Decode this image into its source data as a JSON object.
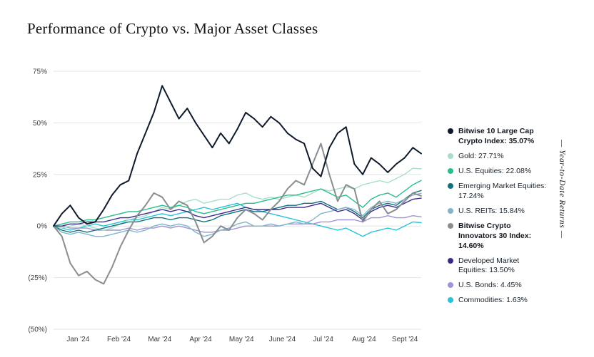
{
  "title": "Performance of Crypto vs. Major Asset Classes",
  "ytd_label": "— Year-to-Date Returns —",
  "chart_data": {
    "type": "line",
    "title": "Performance of Crypto vs. Major Asset Classes",
    "grid": "horizontal",
    "legend_position": "right",
    "x_axis": {
      "labels": [
        "Jan '24",
        "Feb '24",
        "Mar '24",
        "Apr '24",
        "May '24",
        "June '24",
        "Jul '24",
        "Aug '24",
        "Sept '24"
      ]
    },
    "y_axis": {
      "range": [
        -50,
        75
      ],
      "ticks": [
        {
          "value": 75,
          "label": "75%"
        },
        {
          "value": 50,
          "label": "50%"
        },
        {
          "value": 25,
          "label": "25%"
        },
        {
          "value": 0,
          "label": "0%"
        },
        {
          "value": -25,
          "label": "(25%)"
        },
        {
          "value": -50,
          "label": "(50%)"
        }
      ]
    },
    "draw_order": [
      8,
      7,
      1,
      2,
      3,
      4,
      6,
      5,
      0
    ],
    "series": [
      {
        "name": "Bitwise 10 Large Cap Crypto Index",
        "final_value": 35.07,
        "legend_text": "Bitwise 10 Large Cap Crypto Index: 35.07%",
        "color": "#0e1a2b",
        "bold": true,
        "width": 2,
        "values": [
          0,
          6,
          10,
          4,
          1,
          2,
          8,
          15,
          20,
          22,
          35,
          45,
          55,
          68,
          60,
          52,
          57,
          50,
          44,
          38,
          45,
          40,
          47,
          55,
          52,
          48,
          53,
          50,
          45,
          42,
          40,
          28,
          24,
          38,
          45,
          48,
          30,
          25,
          33,
          30,
          26,
          30,
          33,
          38,
          35.07
        ]
      },
      {
        "name": "Gold",
        "final_value": 27.71,
        "legend_text": "Gold: 27.71%",
        "color": "#a7dfc6",
        "bold": false,
        "width": 1.4,
        "values": [
          0,
          -1,
          0,
          1,
          0,
          -1,
          -2,
          -1,
          1,
          3,
          4,
          5,
          7,
          9,
          8,
          10,
          12,
          13,
          11,
          12,
          13,
          13,
          15,
          16,
          14,
          13,
          14,
          13,
          14,
          15,
          14,
          16,
          18,
          17,
          18,
          19,
          18,
          20,
          21,
          22,
          21,
          23,
          25,
          28,
          27.71
        ]
      },
      {
        "name": "U.S. Equities",
        "final_value": 22.08,
        "legend_text": "U.S. Equities: 22.08%",
        "color": "#27bd8c",
        "bold": false,
        "width": 1.4,
        "values": [
          0,
          1,
          2,
          2,
          3,
          3,
          4,
          5,
          6,
          7,
          7,
          8,
          9,
          10,
          9,
          10,
          9,
          7,
          6,
          7,
          8,
          9,
          10,
          11,
          11,
          12,
          13,
          14,
          15,
          15,
          16,
          17,
          18,
          16,
          14,
          15,
          12,
          9,
          13,
          15,
          16,
          14,
          17,
          20,
          22.08
        ]
      },
      {
        "name": "Emerging Market Equities",
        "final_value": 17.24,
        "legend_text": "Emerging Market Equities: 17.24%",
        "color": "#11707c",
        "bold": false,
        "width": 1.4,
        "values": [
          0,
          -2,
          -3,
          -2,
          -3,
          -2,
          -1,
          0,
          1,
          2,
          2,
          3,
          4,
          4,
          3,
          4,
          4,
          3,
          2,
          3,
          5,
          6,
          7,
          8,
          7,
          7,
          8,
          9,
          10,
          10,
          11,
          11,
          12,
          10,
          8,
          9,
          7,
          4,
          8,
          10,
          11,
          10,
          13,
          16,
          17.24
        ]
      },
      {
        "name": "U.S. REITs",
        "final_value": 15.84,
        "legend_text": "U.S. REITs: 15.84%",
        "color": "#7fb5c9",
        "bold": false,
        "width": 1.4,
        "values": [
          0,
          -3,
          -4,
          -3,
          -4,
          -5,
          -5,
          -4,
          -3,
          -2,
          -3,
          -2,
          0,
          1,
          0,
          1,
          0,
          -3,
          -5,
          -4,
          -2,
          -1,
          1,
          2,
          0,
          0,
          1,
          0,
          1,
          2,
          1,
          3,
          6,
          7,
          8,
          9,
          8,
          5,
          9,
          11,
          12,
          11,
          13,
          15,
          15.84
        ]
      },
      {
        "name": "Bitwise Crypto Innovators 30 Index",
        "final_value": 14.6,
        "legend_text": "Bitwise Crypto Innovators 30 Index: 14.60%",
        "color": "#8a8d90",
        "bold": true,
        "width": 2,
        "values": [
          0,
          -5,
          -18,
          -24,
          -22,
          -26,
          -28,
          -20,
          -10,
          -2,
          5,
          10,
          16,
          14,
          8,
          12,
          10,
          2,
          -8,
          -5,
          0,
          -2,
          4,
          8,
          6,
          3,
          8,
          12,
          18,
          22,
          20,
          30,
          40,
          25,
          12,
          20,
          18,
          2,
          8,
          12,
          6,
          8,
          12,
          16,
          14.6
        ]
      },
      {
        "name": "Developed Market Equities",
        "final_value": 13.5,
        "legend_text": "Developed Market Equities: 13.50%",
        "color": "#3d2a8c",
        "bold": false,
        "width": 1.4,
        "values": [
          0,
          0,
          1,
          1,
          2,
          2,
          2,
          3,
          4,
          4,
          5,
          6,
          7,
          8,
          7,
          8,
          7,
          5,
          4,
          5,
          6,
          7,
          8,
          9,
          8,
          8,
          8,
          8,
          9,
          9,
          9,
          10,
          11,
          9,
          7,
          8,
          6,
          3,
          7,
          9,
          10,
          9,
          11,
          13,
          13.5
        ]
      },
      {
        "name": "U.S. Bonds",
        "final_value": 4.45,
        "legend_text": "U.S. Bonds: 4.45%",
        "color": "#a192d4",
        "bold": false,
        "width": 1.4,
        "values": [
          0,
          0,
          -1,
          -1,
          -1,
          -2,
          -2,
          -2,
          -2,
          -1,
          -2,
          -1,
          -1,
          0,
          -1,
          0,
          -1,
          -2,
          -3,
          -3,
          -2,
          -2,
          -1,
          0,
          0,
          0,
          0,
          0,
          1,
          1,
          1,
          1,
          2,
          2,
          3,
          3,
          3,
          2,
          4,
          4,
          5,
          4,
          4,
          5,
          4.45
        ]
      },
      {
        "name": "Commodities",
        "final_value": 1.63,
        "legend_text": "Commodities: 1.63%",
        "color": "#27c3d8",
        "bold": false,
        "width": 1.4,
        "values": [
          0,
          -1,
          -2,
          -1,
          0,
          1,
          0,
          1,
          2,
          3,
          3,
          4,
          5,
          6,
          5,
          6,
          7,
          8,
          9,
          8,
          9,
          10,
          11,
          9,
          8,
          7,
          6,
          5,
          4,
          3,
          2,
          1,
          0,
          -1,
          -2,
          -1,
          -3,
          -5,
          -3,
          -2,
          -1,
          -2,
          0,
          2,
          1.63
        ]
      }
    ]
  }
}
